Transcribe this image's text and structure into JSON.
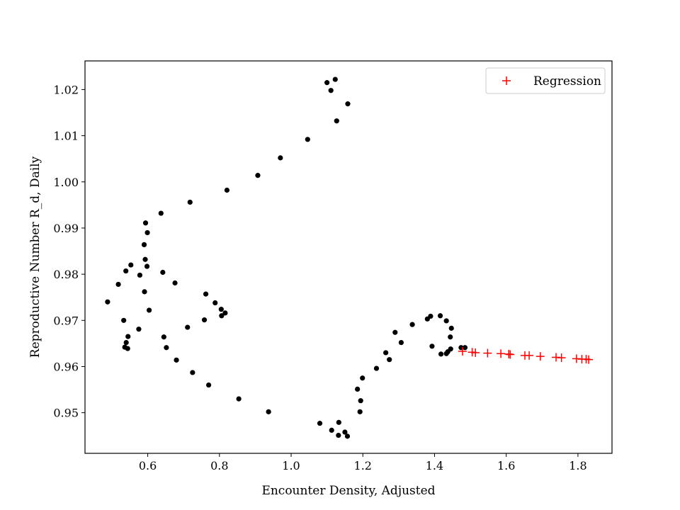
{
  "chart_data": {
    "type": "scatter",
    "title": "",
    "xlabel": "Encounter Density, Adjusted",
    "ylabel": "Reproductive Number R_d, Daily",
    "xlim": [
      0.425,
      1.895
    ],
    "ylim": [
      0.9412,
      1.0262
    ],
    "x_ticks": [
      0.6,
      0.8,
      1.0,
      1.2,
      1.4,
      1.6,
      1.8
    ],
    "x_tick_labels": [
      "0.6",
      "0.8",
      "1.0",
      "1.2",
      "1.4",
      "1.6",
      "1.8"
    ],
    "y_ticks": [
      0.95,
      0.96,
      0.97,
      0.98,
      0.99,
      1.0,
      1.01,
      1.02
    ],
    "y_tick_labels": [
      "0.95",
      "0.96",
      "0.97",
      "0.98",
      "0.99",
      "1.00",
      "1.01",
      "1.02"
    ],
    "grid": false,
    "legend": {
      "position": "top-right",
      "entries": [
        "Regression"
      ]
    },
    "series": [
      {
        "marker": "dot",
        "color": "#000000",
        "points": [
          [
            1.1,
            1.0215
          ],
          [
            1.123,
            1.0222
          ],
          [
            1.111,
            1.0198
          ],
          [
            1.158,
            1.0169
          ],
          [
            1.127,
            1.0132
          ],
          [
            1.046,
            1.0092
          ],
          [
            0.97,
            1.0052
          ],
          [
            0.907,
            1.0014
          ],
          [
            0.821,
            0.9982
          ],
          [
            0.718,
            0.9956
          ],
          [
            0.637,
            0.9932
          ],
          [
            0.594,
            0.9911
          ],
          [
            0.599,
            0.989
          ],
          [
            0.59,
            0.9864
          ],
          [
            0.593,
            0.9832
          ],
          [
            0.598,
            0.9817
          ],
          [
            0.553,
            0.982
          ],
          [
            0.539,
            0.9807
          ],
          [
            0.578,
            0.9798
          ],
          [
            0.518,
            0.9778
          ],
          [
            0.642,
            0.9804
          ],
          [
            0.676,
            0.9781
          ],
          [
            0.591,
            0.9762
          ],
          [
            0.762,
            0.9757
          ],
          [
            0.788,
            0.9738
          ],
          [
            0.488,
            0.974
          ],
          [
            0.604,
            0.9722
          ],
          [
            0.805,
            0.9724
          ],
          [
            0.816,
            0.9716
          ],
          [
            0.806,
            0.971
          ],
          [
            0.533,
            0.97
          ],
          [
            0.758,
            0.9701
          ],
          [
            0.711,
            0.9685
          ],
          [
            0.575,
            0.9681
          ],
          [
            0.545,
            0.9665
          ],
          [
            0.645,
            0.9664
          ],
          [
            0.54,
            0.9652
          ],
          [
            0.536,
            0.9642
          ],
          [
            0.544,
            0.9639
          ],
          [
            0.652,
            0.9641
          ],
          [
            0.68,
            0.9614
          ],
          [
            0.725,
            0.9587
          ],
          [
            0.77,
            0.956
          ],
          [
            0.854,
            0.953
          ],
          [
            0.937,
            0.9502
          ],
          [
            1.08,
            0.9477
          ],
          [
            1.133,
            0.9479
          ],
          [
            1.113,
            0.9462
          ],
          [
            1.15,
            0.9458
          ],
          [
            1.132,
            0.9451
          ],
          [
            1.157,
            0.9449
          ],
          [
            1.192,
            0.9502
          ],
          [
            1.194,
            0.9526
          ],
          [
            1.185,
            0.9551
          ],
          [
            1.199,
            0.9575
          ],
          [
            1.238,
            0.9596
          ],
          [
            1.274,
            0.9615
          ],
          [
            1.264,
            0.963
          ],
          [
            1.307,
            0.9652
          ],
          [
            1.29,
            0.9674
          ],
          [
            1.338,
            0.9691
          ],
          [
            1.38,
            0.9703
          ],
          [
            1.389,
            0.9709
          ],
          [
            1.416,
            0.971
          ],
          [
            1.433,
            0.9699
          ],
          [
            1.447,
            0.9683
          ],
          [
            1.444,
            0.9664
          ],
          [
            1.393,
            0.9644
          ],
          [
            1.418,
            0.9627
          ],
          [
            1.433,
            0.9628
          ],
          [
            1.437,
            0.9632
          ],
          [
            1.445,
            0.9638
          ],
          [
            1.474,
            0.9641
          ],
          [
            1.485,
            0.9641
          ]
        ]
      },
      {
        "name": "Regression",
        "marker": "plus",
        "color": "#ff0000",
        "points": [
          [
            1.478,
            0.9633
          ],
          [
            1.505,
            0.9631
          ],
          [
            1.514,
            0.963
          ],
          [
            1.548,
            0.9629
          ],
          [
            1.585,
            0.9628
          ],
          [
            1.607,
            0.9627
          ],
          [
            1.611,
            0.9626
          ],
          [
            1.652,
            0.9624
          ],
          [
            1.664,
            0.9624
          ],
          [
            1.695,
            0.9622
          ],
          [
            1.739,
            0.962
          ],
          [
            1.754,
            0.9619
          ],
          [
            1.796,
            0.9617
          ],
          [
            1.811,
            0.9616
          ],
          [
            1.823,
            0.9616
          ],
          [
            1.83,
            0.9615
          ]
        ]
      }
    ]
  }
}
